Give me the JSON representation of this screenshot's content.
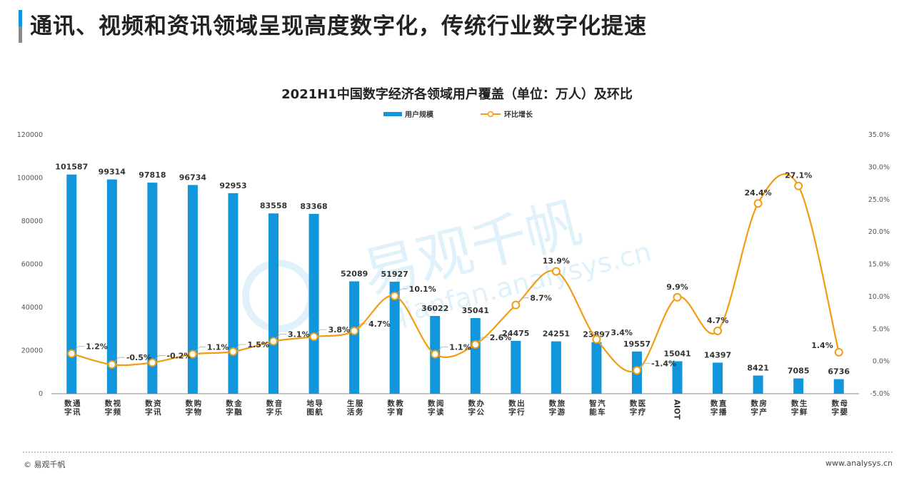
{
  "page": {
    "title": "通讯、视频和资讯领域呈现高度数字化，传统行业数字化提速",
    "footer_left": "© 易观千帆",
    "footer_right": "www.analysys.cn",
    "watermark_cn": "易观千帆",
    "watermark_en": "qianfan.analysys.cn"
  },
  "colors": {
    "bar": "#1296db",
    "line": "#f39c12",
    "accent": "#1296db"
  },
  "chart_data": {
    "type": "bar",
    "title": "2021H1中国数字经济各领域用户覆盖（单位：万人）及环比",
    "categories": [
      "数字通讯",
      "数字视频",
      "数字资讯",
      "数字购物",
      "数字金融",
      "数字音乐",
      "地图导航",
      "生活服务",
      "数字教育",
      "数字阅读",
      "数字办公",
      "数字出行",
      "数字旅游",
      "智能汽车",
      "数字医疗",
      "AIOT",
      "数字直播",
      "数字房产",
      "数字生鲜",
      "数字母婴"
    ],
    "series": [
      {
        "name": "用户规模",
        "kind": "bar",
        "axis": "left",
        "values": [
          101587,
          99314,
          97818,
          96734,
          92953,
          83558,
          83368,
          52089,
          51927,
          36022,
          35041,
          24475,
          24251,
          23897,
          19557,
          15041,
          14397,
          8421,
          7085,
          6736
        ]
      },
      {
        "name": "环比增长",
        "kind": "line",
        "axis": "right",
        "values": [
          1.2,
          -0.5,
          -0.2,
          1.1,
          1.5,
          3.1,
          3.8,
          4.7,
          10.1,
          1.1,
          2.6,
          8.7,
          13.9,
          3.4,
          -1.4,
          9.9,
          4.7,
          24.4,
          27.1,
          1.4
        ],
        "labels": [
          "1.2%",
          "-0.5%",
          "-0.2%",
          "1.1%",
          "1.5%",
          "3.1%",
          "3.8%",
          "4.7%",
          "10.1%",
          "1.1%",
          "2.6%",
          "8.7%",
          "13.9%",
          "3.4%",
          "-1.4%",
          "9.9%",
          "4.7%",
          "24.4%",
          "27.1%",
          "1.4%"
        ]
      }
    ],
    "ylim": [
      0,
      120000
    ],
    "yticks": [
      "0",
      "20000",
      "40000",
      "60000",
      "80000",
      "100000",
      "120000"
    ],
    "y2lim": [
      -5,
      35
    ],
    "y2ticks": [
      "-5.0%",
      "0.0%",
      "5.0%",
      "10.0%",
      "15.0%",
      "20.0%",
      "25.0%",
      "30.0%",
      "35.0%"
    ],
    "xlabel": "",
    "ylabel": "",
    "grid": false,
    "legend": "top-center"
  }
}
